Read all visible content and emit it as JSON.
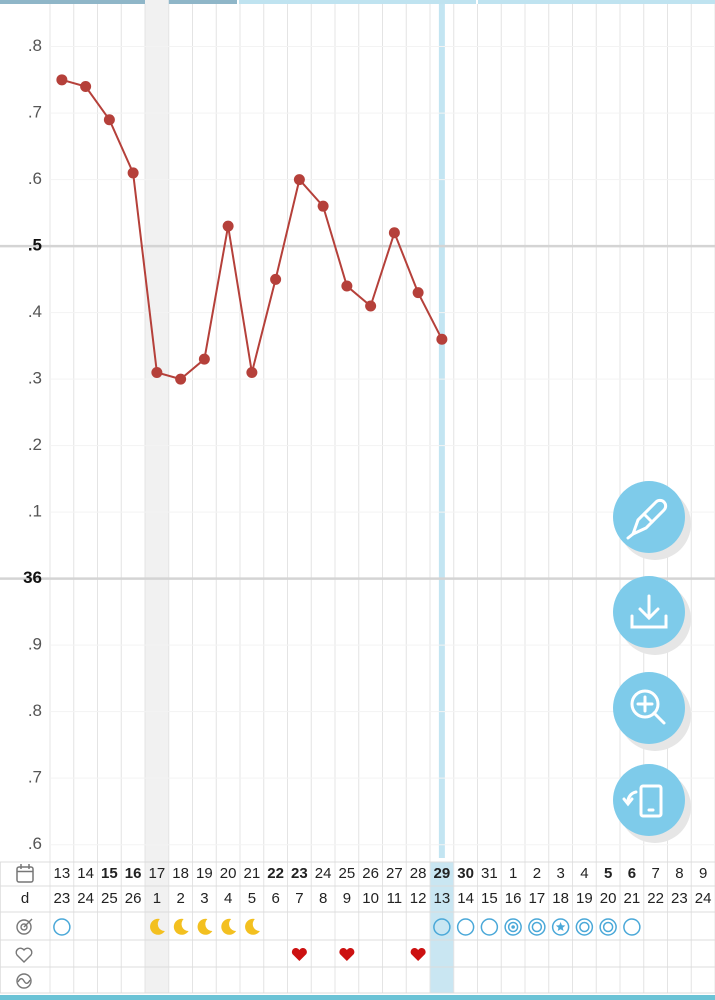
{
  "chart_data": {
    "type": "line",
    "categories": [
      "13",
      "14",
      "15",
      "16",
      "17",
      "18",
      "19",
      "20",
      "21",
      "22",
      "23",
      "24",
      "25",
      "26",
      "27",
      "28",
      "29",
      "30",
      "31",
      "1",
      "2",
      "3",
      "4",
      "5",
      "6",
      "7",
      "8",
      "9"
    ],
    "category_colors": [
      null,
      null,
      "#2f8fc7",
      "#d8413a",
      null,
      null,
      null,
      null,
      null,
      "#2f8fc7",
      "#d8413a",
      null,
      null,
      null,
      null,
      null,
      "#2f8fc7",
      "#d8413a",
      null,
      null,
      null,
      null,
      null,
      "#2f8fc7",
      "#d8413a",
      null,
      null,
      null
    ],
    "values": [
      36.75,
      36.74,
      36.69,
      36.61,
      36.31,
      36.3,
      36.33,
      36.53,
      36.31,
      36.45,
      36.6,
      36.56,
      36.44,
      36.41,
      36.52,
      36.43,
      36.36,
      null,
      null,
      null,
      null,
      null,
      null,
      null,
      null,
      null,
      null,
      null
    ],
    "color": "#b5403a",
    "ylim": [
      35.58,
      36.87
    ],
    "yticks": [
      {
        "value": 36.8,
        "label": ".8"
      },
      {
        "value": 36.7,
        "label": ".7"
      },
      {
        "value": 36.6,
        "label": ".6"
      },
      {
        "value": 36.5,
        "label": ".5"
      },
      {
        "value": 36.4,
        "label": ".4"
      },
      {
        "value": 36.3,
        "label": ".3"
      },
      {
        "value": 36.2,
        "label": ".2"
      },
      {
        "value": 36.1,
        "label": ".1"
      },
      36,
      {
        "value": 35.9,
        "label": ".9"
      },
      {
        "value": 35.8,
        "label": ".8"
      },
      {
        "value": 35.7,
        "label": ".7"
      },
      {
        "value": 35.6,
        "label": ".6"
      }
    ],
    "major_tick_indices": [
      3,
      8
    ],
    "grid": true,
    "highlight_gray_index": 4,
    "highlight_blue_index": 16
  },
  "table": {
    "row_label": "d",
    "cycle_days": [
      "23",
      "24",
      "25",
      "26",
      "1",
      "2",
      "3",
      "4",
      "5",
      "6",
      "7",
      "8",
      "9",
      "10",
      "11",
      "12",
      "13",
      "14",
      "15",
      "16",
      "17",
      "18",
      "19",
      "20",
      "21",
      "22",
      "23",
      "24"
    ],
    "symbols": [
      "circle",
      null,
      null,
      null,
      "moon",
      "moon",
      "moon",
      "moon",
      "moon",
      null,
      null,
      null,
      null,
      null,
      null,
      null,
      "circle",
      "circle",
      "circle",
      "target",
      "ring",
      "star",
      "ring",
      "ring",
      "circle",
      null,
      null,
      null
    ],
    "hearts": [
      null,
      null,
      null,
      null,
      null,
      null,
      null,
      null,
      null,
      null,
      "heart",
      null,
      "heart",
      null,
      null,
      "heart",
      null,
      null,
      null,
      null,
      null,
      null,
      null,
      null,
      null,
      null,
      null,
      null
    ]
  }
}
